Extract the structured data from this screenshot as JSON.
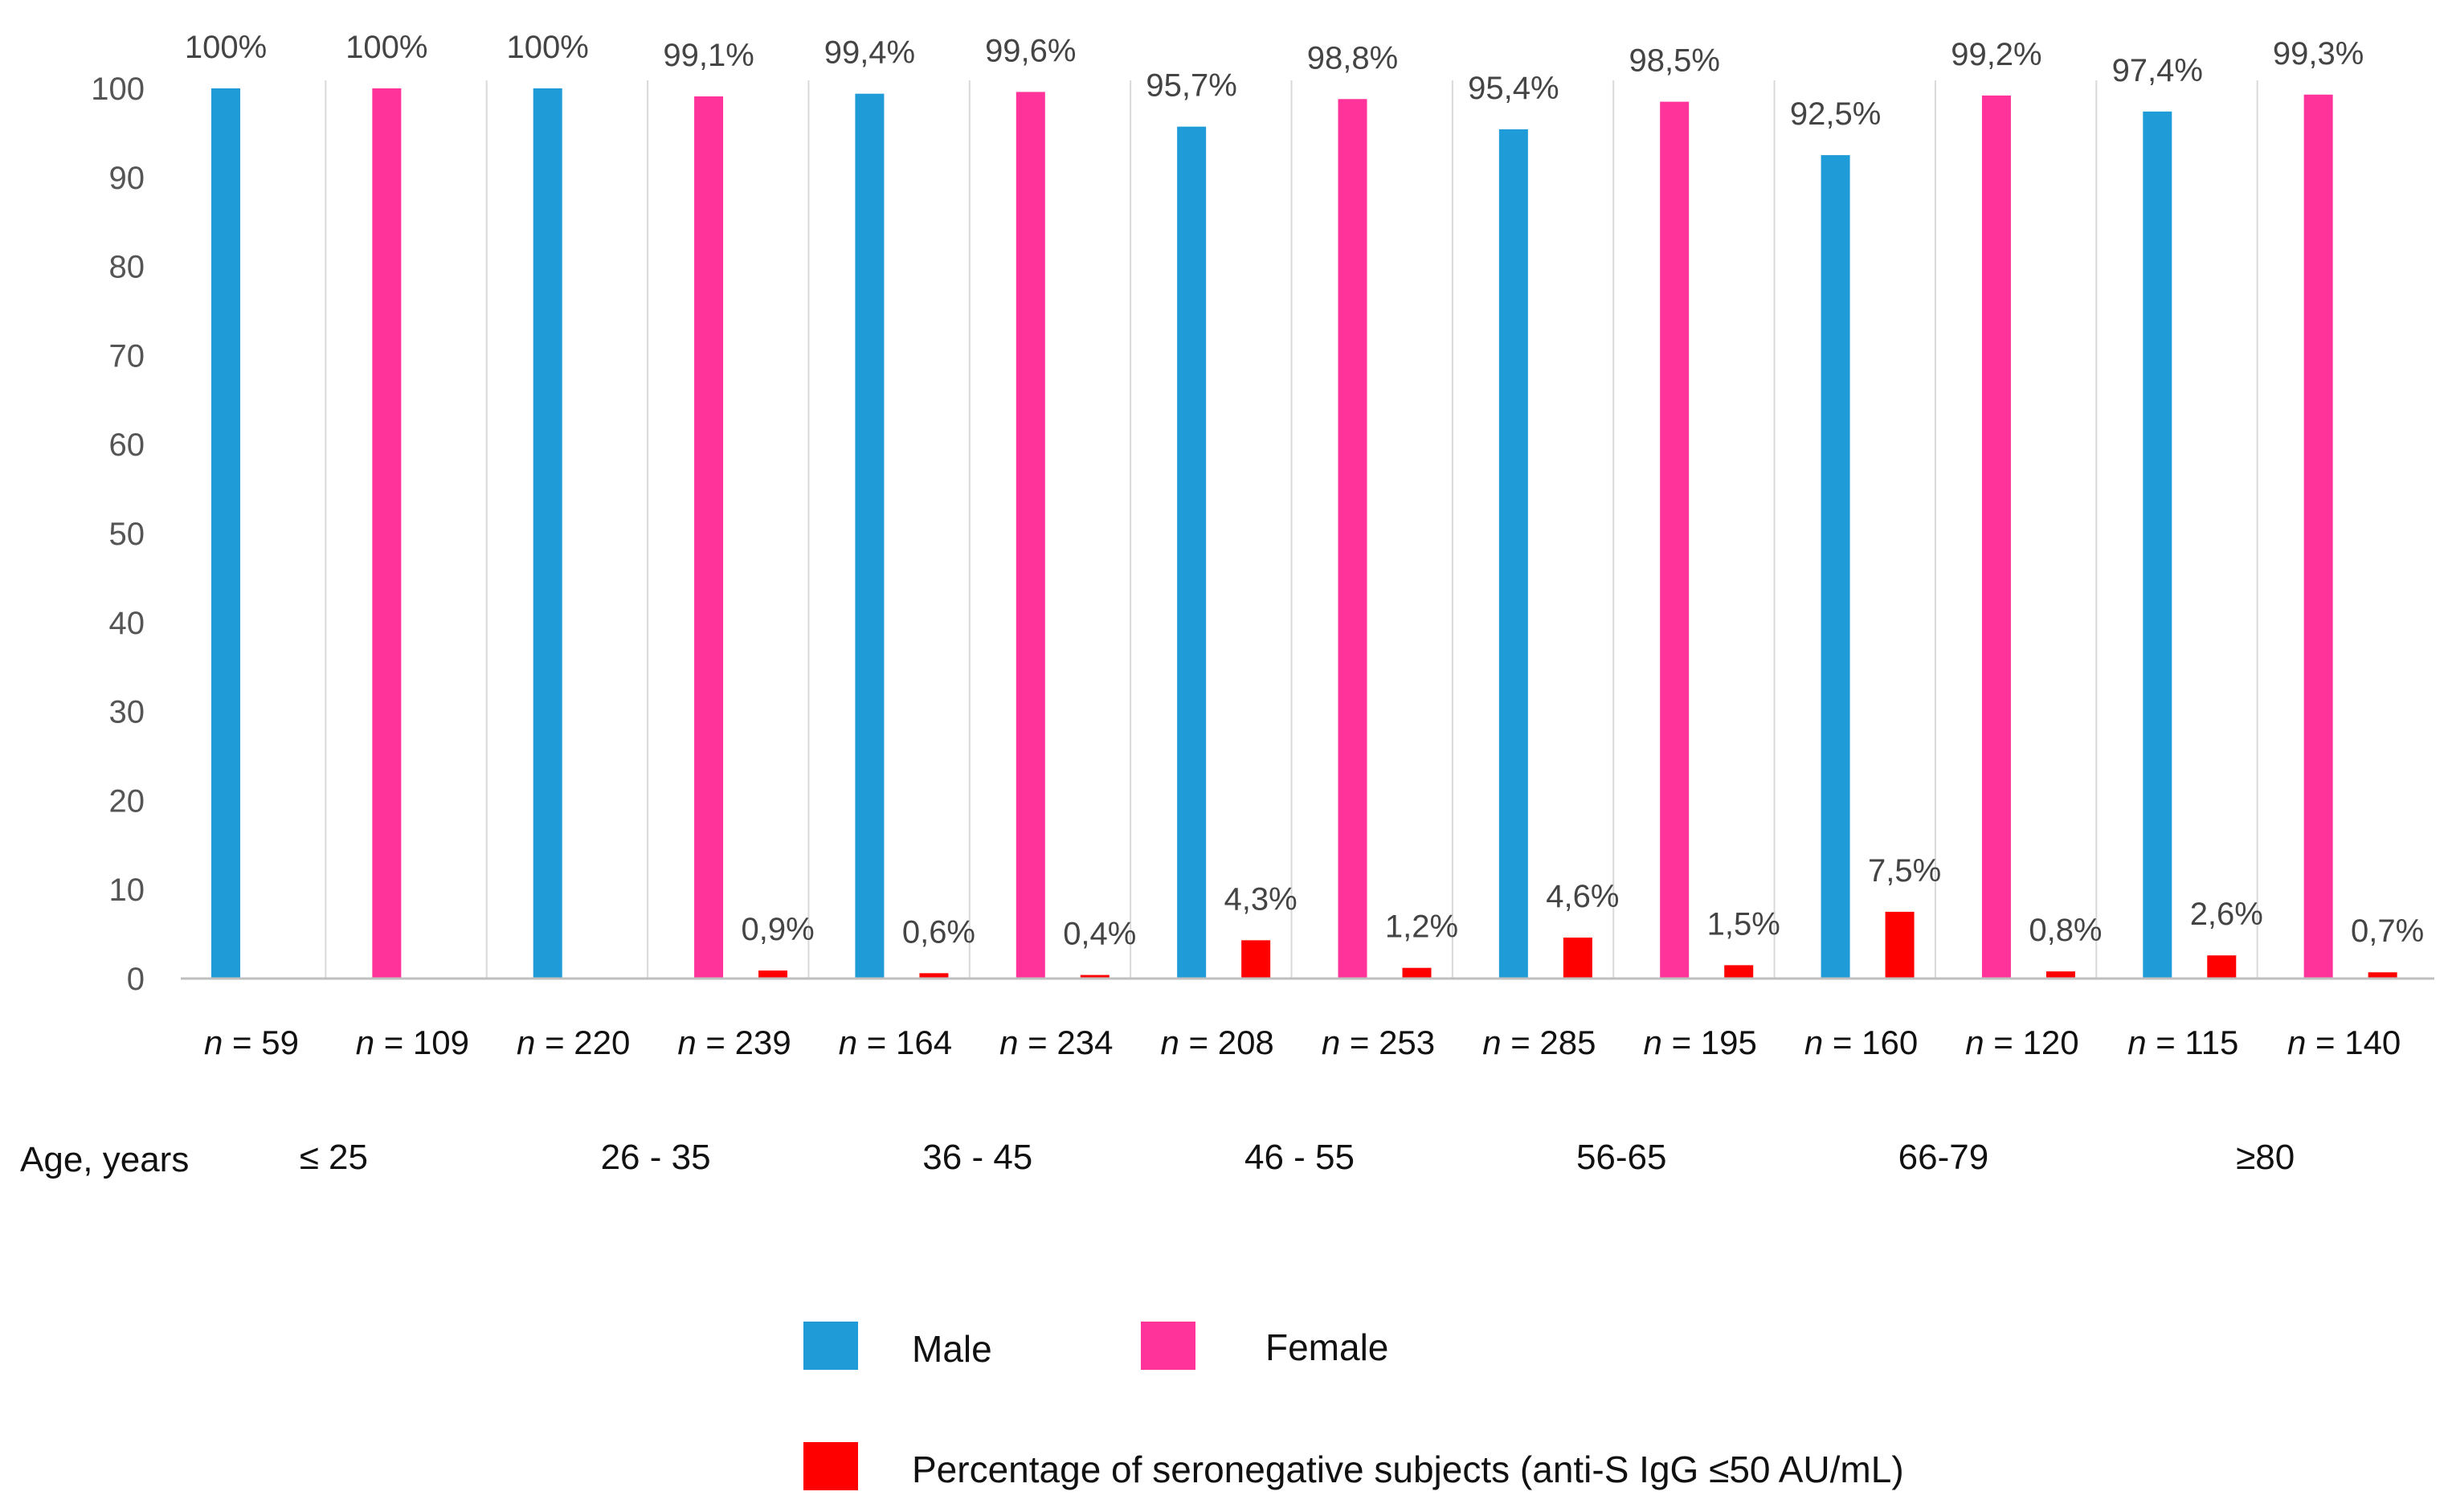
{
  "chart_data": {
    "type": "bar",
    "ylim": [
      0,
      100
    ],
    "yticks": [
      0,
      10,
      20,
      30,
      40,
      50,
      60,
      70,
      80,
      90,
      100
    ],
    "grid": false,
    "x_caption": "Age, years",
    "categories": [
      {
        "sex": "Male",
        "n": "59",
        "age_group": "≤ 25",
        "positive": 100,
        "positive_label": "100%",
        "negative": 0,
        "negative_label": ""
      },
      {
        "sex": "Female",
        "n": "109",
        "age_group": "",
        "positive": 100,
        "positive_label": "100%",
        "negative": 0,
        "negative_label": ""
      },
      {
        "sex": "Male",
        "n": "220",
        "age_group": "26 - 35",
        "positive": 100,
        "positive_label": "100%",
        "negative": 0,
        "negative_label": ""
      },
      {
        "sex": "Female",
        "n": "239",
        "age_group": "",
        "positive": 99.1,
        "positive_label": "99,1%",
        "negative": 0.9,
        "negative_label": "0,9%"
      },
      {
        "sex": "Male",
        "n": "164",
        "age_group": "36 - 45",
        "positive": 99.4,
        "positive_label": "99,4%",
        "negative": 0.6,
        "negative_label": "0,6%"
      },
      {
        "sex": "Female",
        "n": "234",
        "age_group": "",
        "positive": 99.6,
        "positive_label": "99,6%",
        "negative": 0.4,
        "negative_label": "0,4%"
      },
      {
        "sex": "Male",
        "n": "208",
        "age_group": "46 - 55",
        "positive": 95.7,
        "positive_label": "95,7%",
        "negative": 4.3,
        "negative_label": "4,3%"
      },
      {
        "sex": "Female",
        "n": "253",
        "age_group": "",
        "positive": 98.8,
        "positive_label": "98,8%",
        "negative": 1.2,
        "negative_label": "1,2%"
      },
      {
        "sex": "Male",
        "n": "285",
        "age_group": "56-65",
        "positive": 95.4,
        "positive_label": "95,4%",
        "negative": 4.6,
        "negative_label": "4,6%"
      },
      {
        "sex": "Female",
        "n": "195",
        "age_group": "",
        "positive": 98.5,
        "positive_label": "98,5%",
        "negative": 1.5,
        "negative_label": "1,5%"
      },
      {
        "sex": "Male",
        "n": "160",
        "age_group": "66-79",
        "positive": 92.5,
        "positive_label": "92,5%",
        "negative": 7.5,
        "negative_label": "7,5%"
      },
      {
        "sex": "Female",
        "n": "120",
        "age_group": "",
        "positive": 99.2,
        "positive_label": "99,2%",
        "negative": 0.8,
        "negative_label": "0,8%"
      },
      {
        "sex": "Male",
        "n": "115",
        "age_group": "≥80",
        "positive": 97.4,
        "positive_label": "97,4%",
        "negative": 2.6,
        "negative_label": "2,6%"
      },
      {
        "sex": "Female",
        "n": "140",
        "age_group": "",
        "positive": 99.3,
        "positive_label": "99,3%",
        "negative": 0.7,
        "negative_label": "0,7%"
      }
    ],
    "n_prefix": "n",
    "n_separator": " = ",
    "legend": [
      {
        "key": "male",
        "label": "Male",
        "color": "#1f9bd7"
      },
      {
        "key": "female",
        "label": "Female",
        "color": "#ff3399"
      },
      {
        "key": "negative",
        "label": "Percentage of seronegative subjects (anti-S IgG ≤50 AU/mL)",
        "color": "#ff0000"
      }
    ],
    "colors": {
      "male": "#1f9bd7",
      "female": "#ff3399",
      "negative": "#ff0000",
      "axis": "#bfbfbf",
      "divider": "#d9d9d9"
    }
  }
}
